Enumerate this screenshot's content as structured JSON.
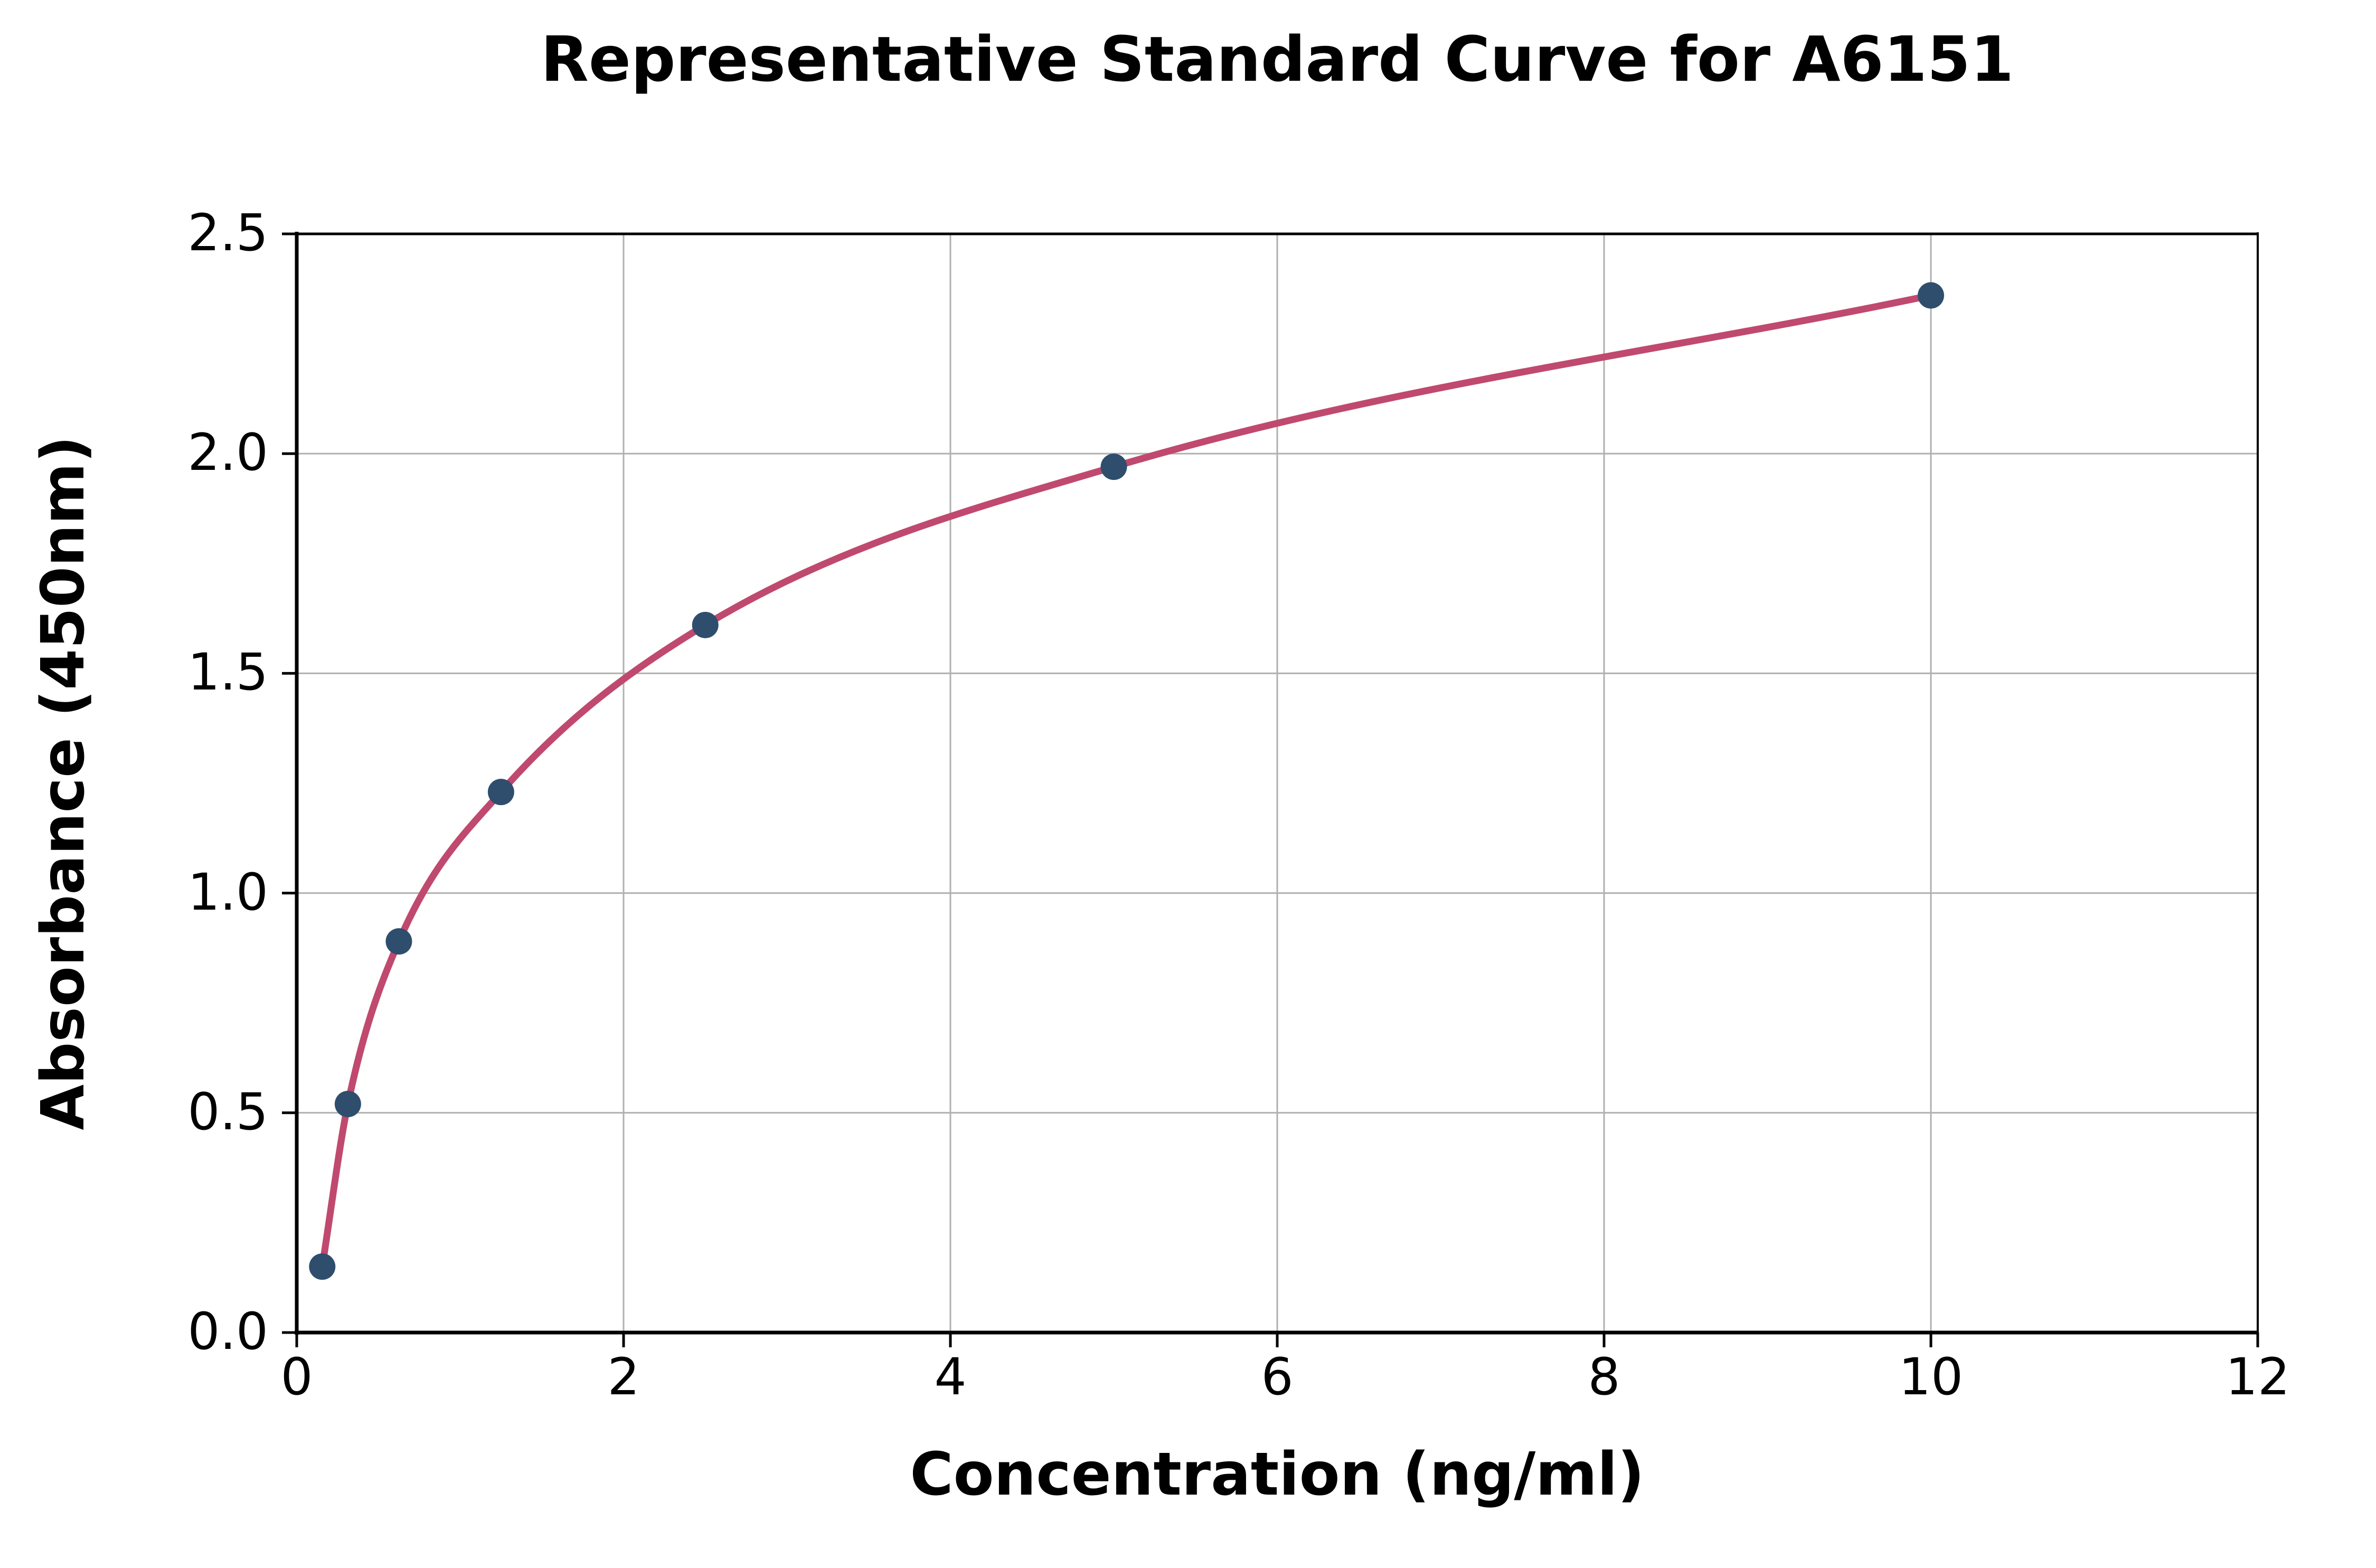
{
  "chart_data": {
    "type": "scatter",
    "title": "Representative Standard Curve for A6151",
    "xlabel": "Concentration (ng/ml)",
    "ylabel": "Absorbance (450nm)",
    "xlim": [
      0,
      12
    ],
    "ylim": [
      0.0,
      2.5
    ],
    "grid": true,
    "x_ticks": [
      0,
      2,
      4,
      6,
      8,
      10,
      12
    ],
    "x_tick_labels": [
      "0",
      "2",
      "4",
      "6",
      "8",
      "10",
      "12"
    ],
    "y_ticks": [
      0.0,
      0.5,
      1.0,
      1.5,
      2.0,
      2.5
    ],
    "y_tick_labels": [
      "0.0",
      "0.5",
      "1.0",
      "1.5",
      "2.0",
      "2.5"
    ],
    "points": [
      {
        "x": 0.156,
        "y": 0.15
      },
      {
        "x": 0.313,
        "y": 0.52
      },
      {
        "x": 0.625,
        "y": 0.89
      },
      {
        "x": 1.25,
        "y": 1.23
      },
      {
        "x": 2.5,
        "y": 1.61
      },
      {
        "x": 5,
        "y": 1.97
      },
      {
        "x": 10,
        "y": 2.36
      }
    ],
    "curve_color": "#c0496f",
    "marker_color": "#2f4e6d",
    "gridline_color": "#b0b0b0",
    "axis_color": "#000000",
    "background_color": "#ffffff"
  }
}
